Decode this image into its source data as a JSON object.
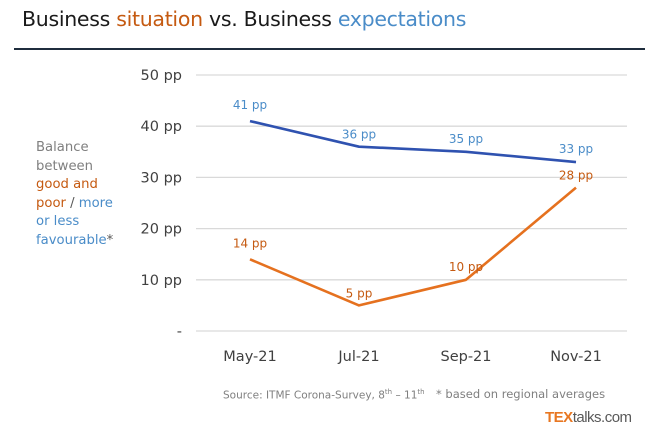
{
  "title": {
    "part1": "Business ",
    "part2_situation": "situation",
    "part3": " vs. Business ",
    "part4_expectations": "expectations"
  },
  "y_axis_label": {
    "line1": "Balance",
    "line2": "between",
    "line3_orange": "good and",
    "line4_orange": "poor",
    "line4_sep": " / ",
    "line4_blue": "more",
    "line5_blue": "or less",
    "line6_blue": "favourable",
    "line6_star": "*"
  },
  "footer": {
    "source_prefix": "Source: ITMF Corona-Survey, 8",
    "source_sup1": "th",
    "source_mid": " – 11",
    "source_sup2": "th",
    "note": "* based on regional averages",
    "logo_bold": "TEX",
    "logo_rest": "talks.com"
  },
  "colors": {
    "situation": "#c55a11",
    "expectations": "#4a8cc8",
    "expectations_line": "#2f52b0",
    "situation_line": "#e5711f",
    "grid": "#d9d9d9"
  },
  "chart_data": {
    "type": "line",
    "title": "Business situation vs. Business expectations",
    "xlabel": "",
    "ylabel": "Balance between good and poor / more or less favourable*",
    "categories": [
      "May-21",
      "Jul-21",
      "Sep-21",
      "Nov-21"
    ],
    "ylim": [
      0,
      50
    ],
    "yticks": [
      0,
      10,
      20,
      30,
      40,
      50
    ],
    "ytick_labels": [
      "-",
      "10 pp",
      "20 pp",
      "30 pp",
      "40 pp",
      "50 pp"
    ],
    "grid": true,
    "legend": "none",
    "series": [
      {
        "name": "Business expectations",
        "color": "#2f52b0",
        "label_color": "#4a8cc8",
        "values": [
          41,
          36,
          35,
          33
        ],
        "labels": [
          "41 pp",
          "36 pp",
          "35 pp",
          "33 pp"
        ]
      },
      {
        "name": "Business situation",
        "color": "#e5711f",
        "label_color": "#c55a11",
        "values": [
          14,
          5,
          10,
          28
        ],
        "labels": [
          "14 pp",
          "5 pp",
          "10 pp",
          "28 pp"
        ]
      }
    ]
  }
}
